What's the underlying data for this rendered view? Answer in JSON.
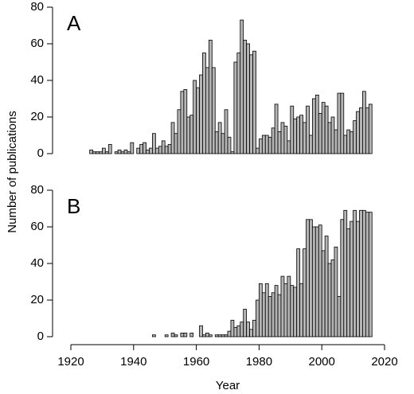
{
  "y_label": "Number of publications",
  "chart_data": [
    {
      "type": "bar",
      "annotation": "A",
      "color": "#b5b5b5",
      "x": [
        1920,
        1921,
        1922,
        1923,
        1924,
        1925,
        1926,
        1927,
        1928,
        1929,
        1930,
        1931,
        1932,
        1933,
        1934,
        1935,
        1936,
        1937,
        1938,
        1939,
        1940,
        1941,
        1942,
        1943,
        1944,
        1945,
        1946,
        1947,
        1948,
        1949,
        1950,
        1951,
        1952,
        1953,
        1954,
        1955,
        1956,
        1957,
        1958,
        1959,
        1960,
        1961,
        1962,
        1963,
        1964,
        1965,
        1966,
        1967,
        1968,
        1969,
        1970,
        1971,
        1972,
        1973,
        1974,
        1975,
        1976,
        1977,
        1978,
        1979,
        1980,
        1981,
        1982,
        1983,
        1984,
        1985,
        1986,
        1987,
        1988,
        1989,
        1990,
        1991,
        1992,
        1993,
        1994,
        1995,
        1996,
        1997,
        1998,
        1999,
        2000,
        2001,
        2002,
        2003,
        2004,
        2005,
        2006,
        2007,
        2008,
        2009,
        2010,
        2011,
        2012,
        2013,
        2014,
        2015
      ],
      "values": [
        0,
        0,
        0,
        0,
        0,
        0,
        2,
        1,
        1,
        1,
        3,
        1,
        5,
        0,
        1,
        2,
        1,
        2,
        1,
        6,
        0,
        3,
        5,
        6,
        2,
        3,
        11,
        3,
        4,
        7,
        4,
        5,
        17,
        11,
        24,
        34,
        35,
        20,
        21,
        40,
        36,
        43,
        55,
        47,
        62,
        47,
        12,
        17,
        11,
        24,
        9,
        1,
        50,
        55,
        73,
        62,
        60,
        54,
        56,
        3,
        8,
        10,
        10,
        9,
        14,
        27,
        12,
        17,
        15,
        7,
        26,
        19,
        20,
        21,
        17,
        26,
        10,
        30,
        32,
        22,
        28,
        26,
        17,
        20,
        13,
        33,
        33,
        10,
        13,
        12,
        18,
        23,
        25,
        34,
        25,
        27
      ],
      "xlim": [
        1920,
        2020
      ],
      "ylim": [
        0,
        80
      ],
      "yticks": [
        0,
        20,
        40,
        60,
        80
      ]
    },
    {
      "type": "bar",
      "annotation": "B",
      "color": "#b5b5b5",
      "xlabel": "Year",
      "x": [
        1920,
        1921,
        1922,
        1923,
        1924,
        1925,
        1926,
        1927,
        1928,
        1929,
        1930,
        1931,
        1932,
        1933,
        1934,
        1935,
        1936,
        1937,
        1938,
        1939,
        1940,
        1941,
        1942,
        1943,
        1944,
        1945,
        1946,
        1947,
        1948,
        1949,
        1950,
        1951,
        1952,
        1953,
        1954,
        1955,
        1956,
        1957,
        1958,
        1959,
        1960,
        1961,
        1962,
        1963,
        1964,
        1965,
        1966,
        1967,
        1968,
        1969,
        1970,
        1971,
        1972,
        1973,
        1974,
        1975,
        1976,
        1977,
        1978,
        1979,
        1980,
        1981,
        1982,
        1983,
        1984,
        1985,
        1986,
        1987,
        1988,
        1989,
        1990,
        1991,
        1992,
        1993,
        1994,
        1995,
        1996,
        1997,
        1998,
        1999,
        2000,
        2001,
        2002,
        2003,
        2004,
        2005,
        2006,
        2007,
        2008,
        2009,
        2010,
        2011,
        2012,
        2013,
        2014,
        2015
      ],
      "values": [
        0,
        0,
        0,
        0,
        0,
        0,
        0,
        0,
        0,
        0,
        0,
        0,
        0,
        0,
        0,
        0,
        0,
        0,
        0,
        0,
        0,
        0,
        0,
        0,
        0,
        0,
        1,
        0,
        0,
        0,
        1,
        0,
        2,
        1,
        0,
        2,
        2,
        0,
        2,
        0,
        0,
        6,
        1,
        2,
        1,
        0,
        1,
        1,
        1,
        1,
        3,
        9,
        5,
        6,
        8,
        15,
        8,
        4,
        9,
        20,
        29,
        24,
        29,
        22,
        24,
        28,
        23,
        33,
        29,
        33,
        28,
        27,
        48,
        29,
        48,
        64,
        64,
        60,
        60,
        61,
        47,
        55,
        40,
        42,
        49,
        22,
        64,
        69,
        59,
        63,
        69,
        63,
        69,
        69,
        68,
        68
      ],
      "xlim": [
        1920,
        2020
      ],
      "xticks": [
        1920,
        1940,
        1960,
        1980,
        2000,
        2020
      ],
      "ylim": [
        0,
        80
      ],
      "yticks": [
        0,
        20,
        40,
        60,
        80
      ]
    }
  ]
}
